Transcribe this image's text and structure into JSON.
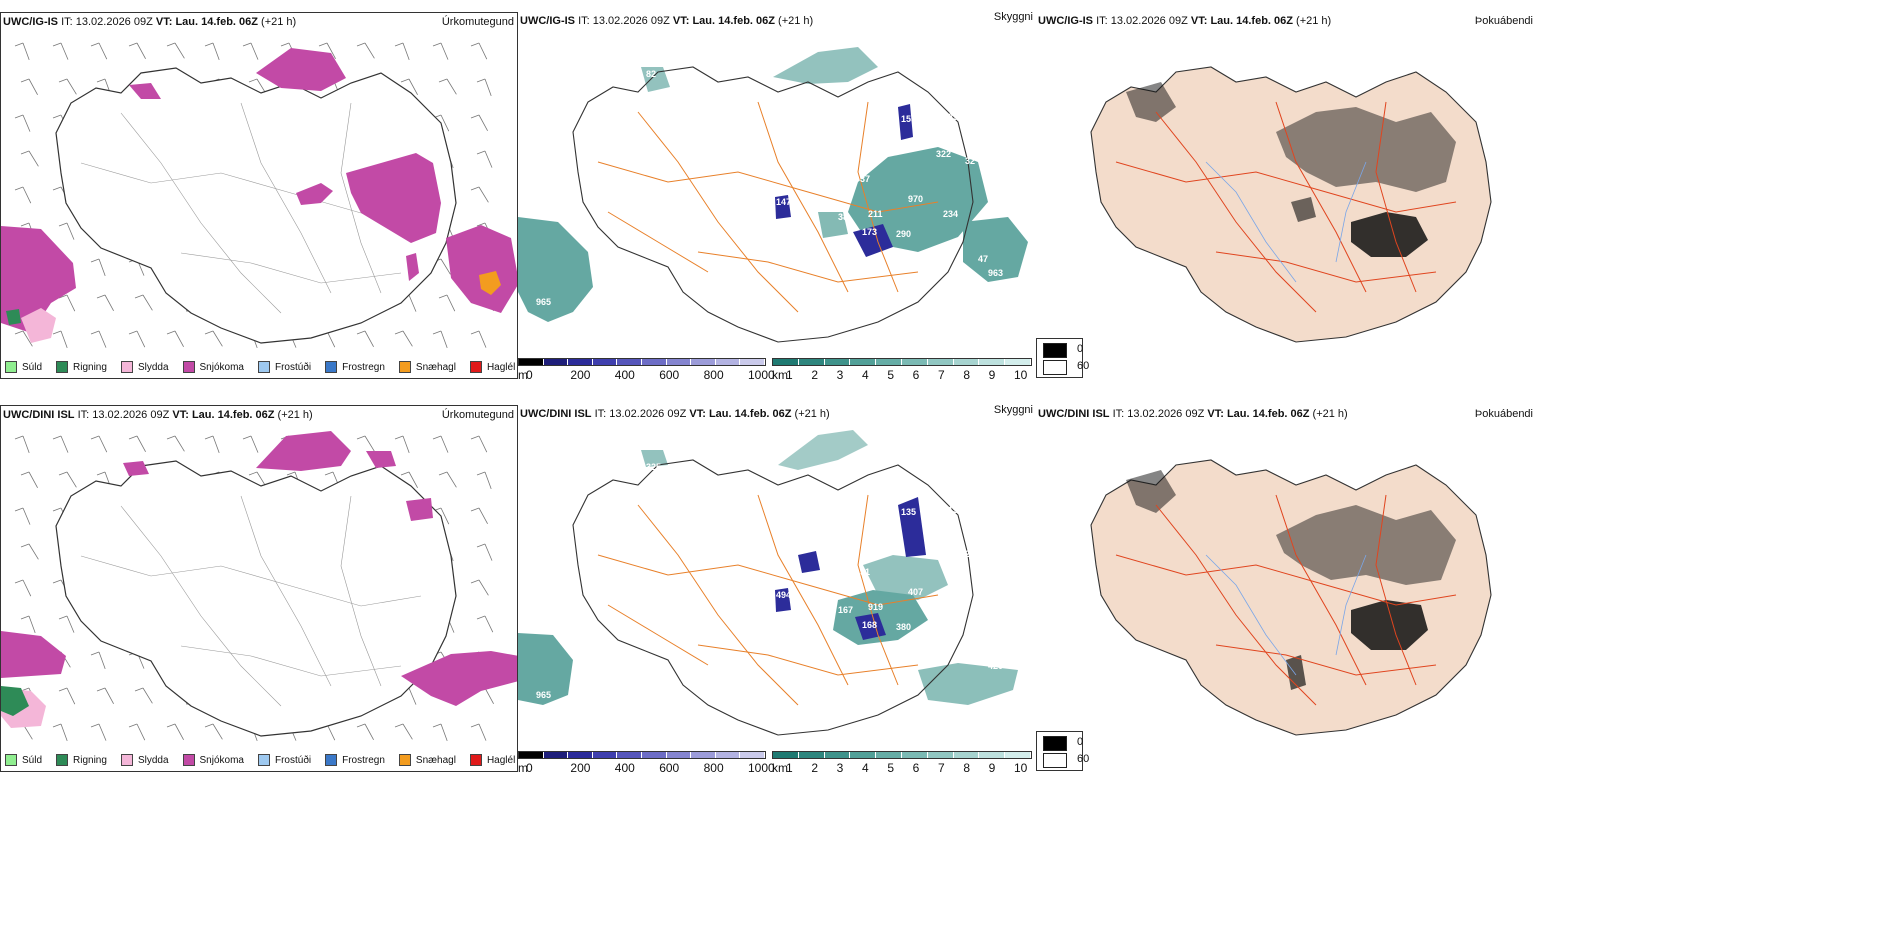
{
  "rows": [
    {
      "model": "UWC/IG-IS",
      "it_label": "IT:",
      "it_value": "13.02.2026 09Z",
      "vt_label": "VT:",
      "vt_value": "Lau. 14.feb. 06Z",
      "lead": "(+21 h)"
    },
    {
      "model": "UWC/DINI ISL",
      "it_label": "IT:",
      "it_value": "13.02.2026 09Z",
      "vt_label": "VT:",
      "vt_value": "Lau. 14.feb. 06Z",
      "lead": "(+21 h)"
    }
  ],
  "panel_titles": {
    "precip": "Úrkomutegund",
    "cloud": "Skyggni",
    "fog": "Þokuábendi"
  },
  "precip_legend": [
    {
      "label": "Súld",
      "color": "#90ee90"
    },
    {
      "label": "Rigning",
      "color": "#2e8b57"
    },
    {
      "label": "Slydda",
      "color": "#f4b6d8"
    },
    {
      "label": "Snjókoma",
      "color": "#c24aa6"
    },
    {
      "label": "Frostúði",
      "color": "#9ec9f0"
    },
    {
      "label": "Frostregn",
      "color": "#3a78c8"
    },
    {
      "label": "Snæhagl",
      "color": "#f39c1f"
    },
    {
      "label": "Haglél",
      "color": "#e01a1a"
    }
  ],
  "height_colorbar": {
    "unit": "m",
    "ticks": [
      "0",
      "200",
      "400",
      "600",
      "800",
      "1000"
    ],
    "colors": [
      "#000000",
      "#1e1e7a",
      "#2c2c9a",
      "#3f3fae",
      "#5656bb",
      "#6d6dc6",
      "#8585d0",
      "#9c9cd9",
      "#b3b3e2",
      "#cacaeb"
    ]
  },
  "visibility_colorbar": {
    "unit": "km",
    "ticks": [
      "1",
      "2",
      "3",
      "4",
      "5",
      "6",
      "7",
      "8",
      "9",
      "10"
    ],
    "colors": [
      "#1f7a72",
      "#2e867e",
      "#3f938b",
      "#52a098",
      "#66ada6",
      "#7bbab4",
      "#91c7c2",
      "#a7d4d0",
      "#bde1de",
      "#d3eeec"
    ]
  },
  "cloud_legend": [
    {
      "label": "0",
      "color": "#000000"
    },
    {
      "label": "60",
      "color": "#ffffff"
    }
  ],
  "map_labels_row1": [
    "82",
    "155",
    "729",
    "322",
    "32",
    "37",
    "147",
    "970",
    "38",
    "211",
    "234",
    "173",
    "290",
    "47",
    "963",
    "965"
  ],
  "map_labels_row2": [
    "325",
    "135",
    "415",
    "448",
    "221",
    "51",
    "494",
    "407",
    "167",
    "919",
    "393",
    "168",
    "380",
    "921",
    "420",
    "965"
  ],
  "colors": {
    "snow": "#c24aa6",
    "rain": "#2e8b57",
    "sleet": "#f4b6d8",
    "road_orange": "#e8802a",
    "vis_teal": "#3f938b",
    "land_fill": "#f3dccb",
    "road_red": "#e0451f",
    "river_blue": "#7aa6e8"
  }
}
